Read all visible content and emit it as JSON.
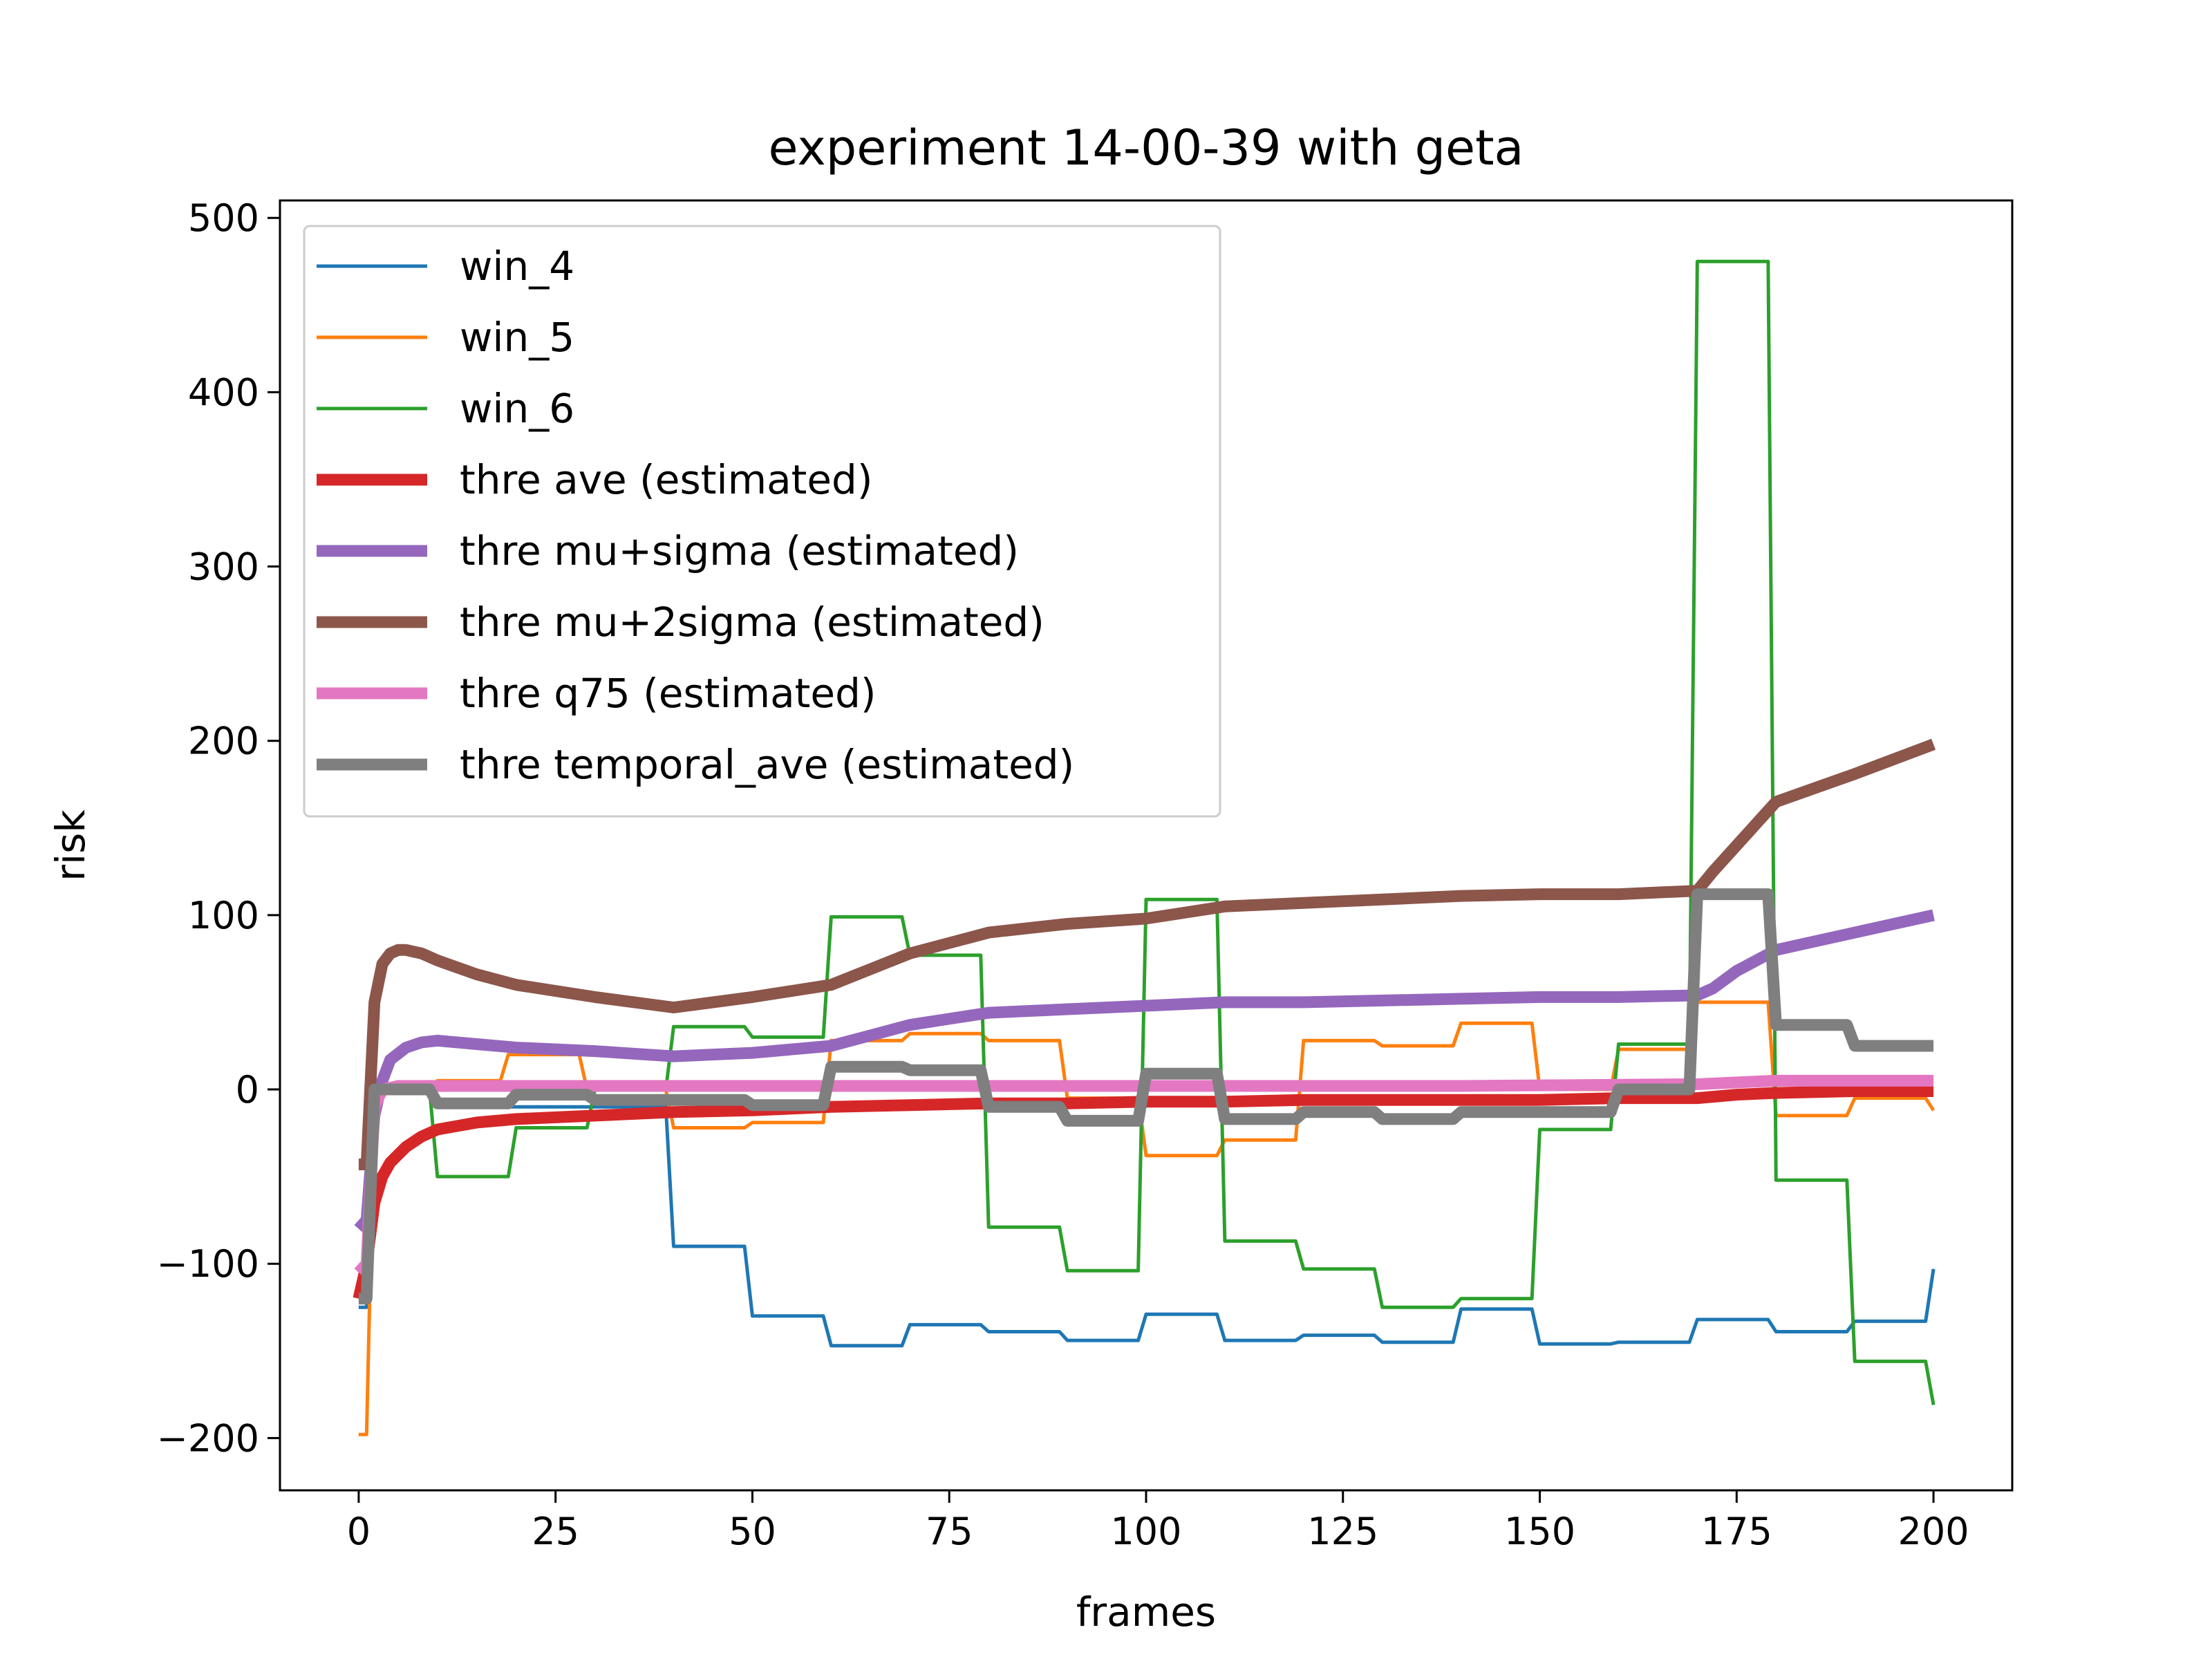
{
  "chart_data": {
    "type": "line",
    "title": "experiment 14-00-39 with geta",
    "xlabel": "frames",
    "ylabel": "risk",
    "xlim": [
      -10,
      210
    ],
    "ylim": [
      -230,
      510
    ],
    "xticks": [
      0,
      25,
      50,
      75,
      100,
      125,
      150,
      175,
      200
    ],
    "yticks": [
      -200,
      -100,
      0,
      100,
      200,
      300,
      400,
      500
    ],
    "xtick_labels": [
      "0",
      "25",
      "50",
      "75",
      "100",
      "125",
      "150",
      "175",
      "200"
    ],
    "ytick_labels": [
      "−200",
      "−100",
      "0",
      "100",
      "200",
      "300",
      "400",
      "500"
    ],
    "grid": false,
    "legend_position": "top-left",
    "series": [
      {
        "name": "win_4",
        "color": "#1f77b4",
        "width": "thin",
        "x": [
          0,
          1,
          2,
          9,
          10,
          38,
          39,
          40,
          49,
          50,
          59,
          60,
          69,
          70,
          79,
          80,
          89,
          90,
          99,
          100,
          109,
          110,
          119,
          120,
          129,
          130,
          139,
          140,
          149,
          150,
          159,
          160,
          169,
          170,
          179,
          180,
          189,
          190,
          199,
          200
        ],
        "y": [
          -125,
          -125,
          0,
          0,
          -10,
          -10,
          -10,
          -90,
          -90,
          -130,
          -130,
          -147,
          -147,
          -135,
          -135,
          -139,
          -139,
          -144,
          -144,
          -129,
          -129,
          -144,
          -144,
          -141,
          -141,
          -145,
          -145,
          -126,
          -126,
          -146,
          -146,
          -145,
          -145,
          -132,
          -132,
          -139,
          -139,
          -133,
          -133,
          -103
        ]
      },
      {
        "name": "win_5",
        "color": "#ff7f0e",
        "width": "thin",
        "x": [
          0,
          1,
          2,
          9,
          10,
          18,
          19,
          20,
          28,
          29,
          38,
          39,
          40,
          49,
          50,
          59,
          60,
          69,
          70,
          79,
          80,
          89,
          90,
          99,
          100,
          109,
          110,
          119,
          120,
          129,
          130,
          139,
          140,
          149,
          150,
          159,
          160,
          169,
          170,
          179,
          180,
          189,
          190,
          199,
          200
        ],
        "y": [
          -198,
          -198,
          0,
          0,
          5,
          5,
          20,
          20,
          20,
          0,
          0,
          0,
          -22,
          -22,
          -19,
          -19,
          28,
          28,
          32,
          32,
          28,
          28,
          -5,
          -5,
          -38,
          -38,
          -29,
          -29,
          28,
          28,
          25,
          25,
          38,
          38,
          0,
          0,
          23,
          23,
          50,
          50,
          -15,
          -15,
          -5,
          -5,
          -12
        ]
      },
      {
        "name": "win_6",
        "color": "#2ca02c",
        "width": "thin",
        "x": [
          0,
          1,
          2,
          9,
          10,
          19,
          20,
          29,
          30,
          38,
          39,
          40,
          49,
          50,
          59,
          60,
          69,
          70,
          79,
          80,
          89,
          90,
          99,
          100,
          109,
          110,
          119,
          120,
          129,
          130,
          139,
          140,
          149,
          150,
          159,
          160,
          169,
          170,
          179,
          180,
          189,
          190,
          199,
          200
        ],
        "y": [
          -120,
          -120,
          0,
          0,
          -50,
          -50,
          -22,
          -22,
          0,
          0,
          0,
          36,
          36,
          30,
          30,
          99,
          99,
          77,
          77,
          -79,
          -79,
          -104,
          -104,
          109,
          109,
          -87,
          -87,
          -103,
          -103,
          -125,
          -125,
          -120,
          -120,
          -23,
          -23,
          26,
          26,
          475,
          475,
          -52,
          -52,
          -156,
          -156,
          -181
        ]
      },
      {
        "name": "thre ave (estimated)",
        "color": "#d62728",
        "width": "thick",
        "x": [
          0,
          1,
          2,
          3,
          4,
          6,
          8,
          10,
          15,
          20,
          30,
          40,
          50,
          60,
          70,
          80,
          90,
          100,
          110,
          120,
          130,
          140,
          150,
          160,
          170,
          175,
          180,
          190,
          200
        ],
        "y": [
          -120,
          -100,
          -65,
          -50,
          -42,
          -33,
          -27,
          -23,
          -19,
          -17,
          -15,
          -13,
          -12,
          -10,
          -9,
          -8,
          -8,
          -7,
          -7,
          -6,
          -6,
          -6,
          -6,
          -5,
          -5,
          -3,
          -2,
          -1,
          -1
        ]
      },
      {
        "name": "thre mu+sigma (estimated)",
        "color": "#9467bd",
        "width": "thick",
        "x": [
          0,
          1,
          2,
          3,
          4,
          6,
          8,
          10,
          15,
          20,
          30,
          40,
          50,
          60,
          70,
          80,
          90,
          100,
          110,
          120,
          130,
          140,
          150,
          160,
          170,
          172,
          175,
          180,
          190,
          200
        ],
        "y": [
          -80,
          -75,
          -15,
          5,
          17,
          24,
          27,
          28,
          26,
          24,
          22,
          19,
          21,
          25,
          37,
          44,
          46,
          48,
          50,
          50,
          51,
          52,
          53,
          53,
          54,
          58,
          68,
          80,
          90,
          100
        ]
      },
      {
        "name": "thre mu+2sigma (estimated)",
        "color": "#8c564b",
        "width": "thick",
        "x": [
          0,
          1,
          2,
          3,
          4,
          5,
          6,
          8,
          10,
          15,
          20,
          30,
          40,
          50,
          60,
          70,
          80,
          90,
          100,
          110,
          120,
          130,
          140,
          150,
          160,
          170,
          172,
          175,
          180,
          190,
          200
        ],
        "y": [
          -43,
          -43,
          50,
          72,
          78,
          80,
          80,
          78,
          74,
          66,
          60,
          53,
          47,
          53,
          60,
          78,
          90,
          95,
          98,
          105,
          107,
          109,
          111,
          112,
          112,
          114,
          125,
          140,
          165,
          181,
          198
        ]
      },
      {
        "name": "thre q75 (estimated)",
        "color": "#e377c2",
        "width": "thick",
        "x": [
          0,
          1,
          2,
          3,
          5,
          10,
          20,
          40,
          60,
          100,
          140,
          170,
          175,
          180,
          200
        ],
        "y": [
          -105,
          -100,
          -10,
          0,
          2,
          2,
          2,
          2,
          2,
          2,
          2,
          3,
          4,
          5,
          5
        ]
      },
      {
        "name": "thre temporal_ave (estimated)",
        "color": "#7f7f7f",
        "width": "thick",
        "x": [
          0,
          1,
          2,
          9,
          10,
          19,
          20,
          29,
          30,
          49,
          50,
          59,
          60,
          69,
          70,
          79,
          80,
          89,
          90,
          99,
          100,
          109,
          110,
          119,
          120,
          129,
          130,
          139,
          140,
          149,
          150,
          159,
          160,
          169,
          170,
          179,
          180,
          189,
          190,
          199,
          200
        ],
        "y": [
          -120,
          -120,
          0,
          0,
          -8,
          -8,
          -3,
          -3,
          -6,
          -6,
          -9,
          -9,
          13,
          13,
          11,
          11,
          -10,
          -10,
          -18,
          -18,
          9,
          9,
          -17,
          -17,
          -13,
          -13,
          -17,
          -17,
          -13,
          -13,
          -13,
          -13,
          0,
          0,
          112,
          112,
          37,
          37,
          25,
          25,
          25
        ]
      }
    ]
  }
}
